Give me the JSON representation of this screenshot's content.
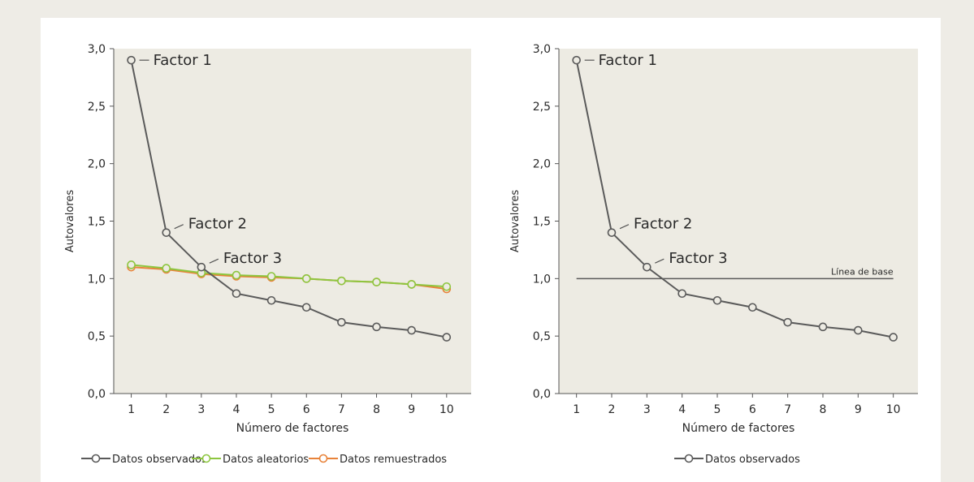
{
  "chart_data": [
    {
      "type": "line",
      "title": "",
      "xlabel": "Número de factores",
      "ylabel": "Autovalores",
      "x": [
        1,
        2,
        3,
        4,
        5,
        6,
        7,
        8,
        9,
        10
      ],
      "xlim": [
        0.5,
        10.7
      ],
      "ylim": [
        0,
        3.0
      ],
      "yticks": [
        0,
        0.5,
        1.0,
        1.5,
        2.0,
        2.5,
        3.0
      ],
      "ytick_labels": [
        "0,0",
        "0,5",
        "1,0",
        "1,5",
        "2,0",
        "2,5",
        "3,0"
      ],
      "xtick_labels": [
        "1",
        "2",
        "3",
        "4",
        "5",
        "6",
        "7",
        "8",
        "9",
        "10"
      ],
      "grid": false,
      "legend_position": "bottom",
      "series": [
        {
          "name": "Datos observados",
          "color": "#5a5a5a",
          "values": [
            2.9,
            1.4,
            1.1,
            0.87,
            0.81,
            0.75,
            0.62,
            0.58,
            0.55,
            0.49
          ]
        },
        {
          "name": "Datos aleatorios",
          "color": "#8dc63f",
          "values": [
            1.12,
            1.09,
            1.05,
            1.03,
            1.02,
            1.0,
            0.98,
            0.97,
            0.95,
            0.93
          ]
        },
        {
          "name": "Datos remuestrados",
          "color": "#e8833a",
          "values": [
            1.1,
            1.08,
            1.04,
            1.02,
            1.01,
            1.0,
            0.98,
            0.97,
            0.95,
            0.91
          ]
        }
      ],
      "annotations": [
        {
          "text": "Factor 1",
          "x": 1,
          "y": 2.9
        },
        {
          "text": "Factor 2",
          "x": 2,
          "y": 1.4
        },
        {
          "text": "Factor 3",
          "x": 3,
          "y": 1.1
        }
      ],
      "plot_bg": "#edebe3"
    },
    {
      "type": "line",
      "title": "",
      "xlabel": "Número de factores",
      "ylabel": "Autovalores",
      "x": [
        1,
        2,
        3,
        4,
        5,
        6,
        7,
        8,
        9,
        10
      ],
      "xlim": [
        0.5,
        10.7
      ],
      "ylim": [
        0,
        3.0
      ],
      "yticks": [
        0,
        0.5,
        1.0,
        1.5,
        2.0,
        2.5,
        3.0
      ],
      "ytick_labels": [
        "0,0",
        "0,5",
        "1,0",
        "1,5",
        "2,0",
        "2,5",
        "3,0"
      ],
      "xtick_labels": [
        "1",
        "2",
        "3",
        "4",
        "5",
        "6",
        "7",
        "8",
        "9",
        "10"
      ],
      "grid": false,
      "legend_position": "bottom",
      "series": [
        {
          "name": "Datos observados",
          "color": "#5a5a5a",
          "values": [
            2.9,
            1.4,
            1.1,
            0.87,
            0.81,
            0.75,
            0.62,
            0.58,
            0.55,
            0.49
          ]
        }
      ],
      "reference_line": {
        "label": "Línea de base",
        "y": 1.0,
        "x_from": 1,
        "x_to": 10,
        "color": "#5a5a5a"
      },
      "annotations": [
        {
          "text": "Factor 1",
          "x": 1,
          "y": 2.9
        },
        {
          "text": "Factor 2",
          "x": 2,
          "y": 1.4
        },
        {
          "text": "Factor 3",
          "x": 3,
          "y": 1.1
        }
      ],
      "plot_bg": "#edebe3"
    }
  ]
}
